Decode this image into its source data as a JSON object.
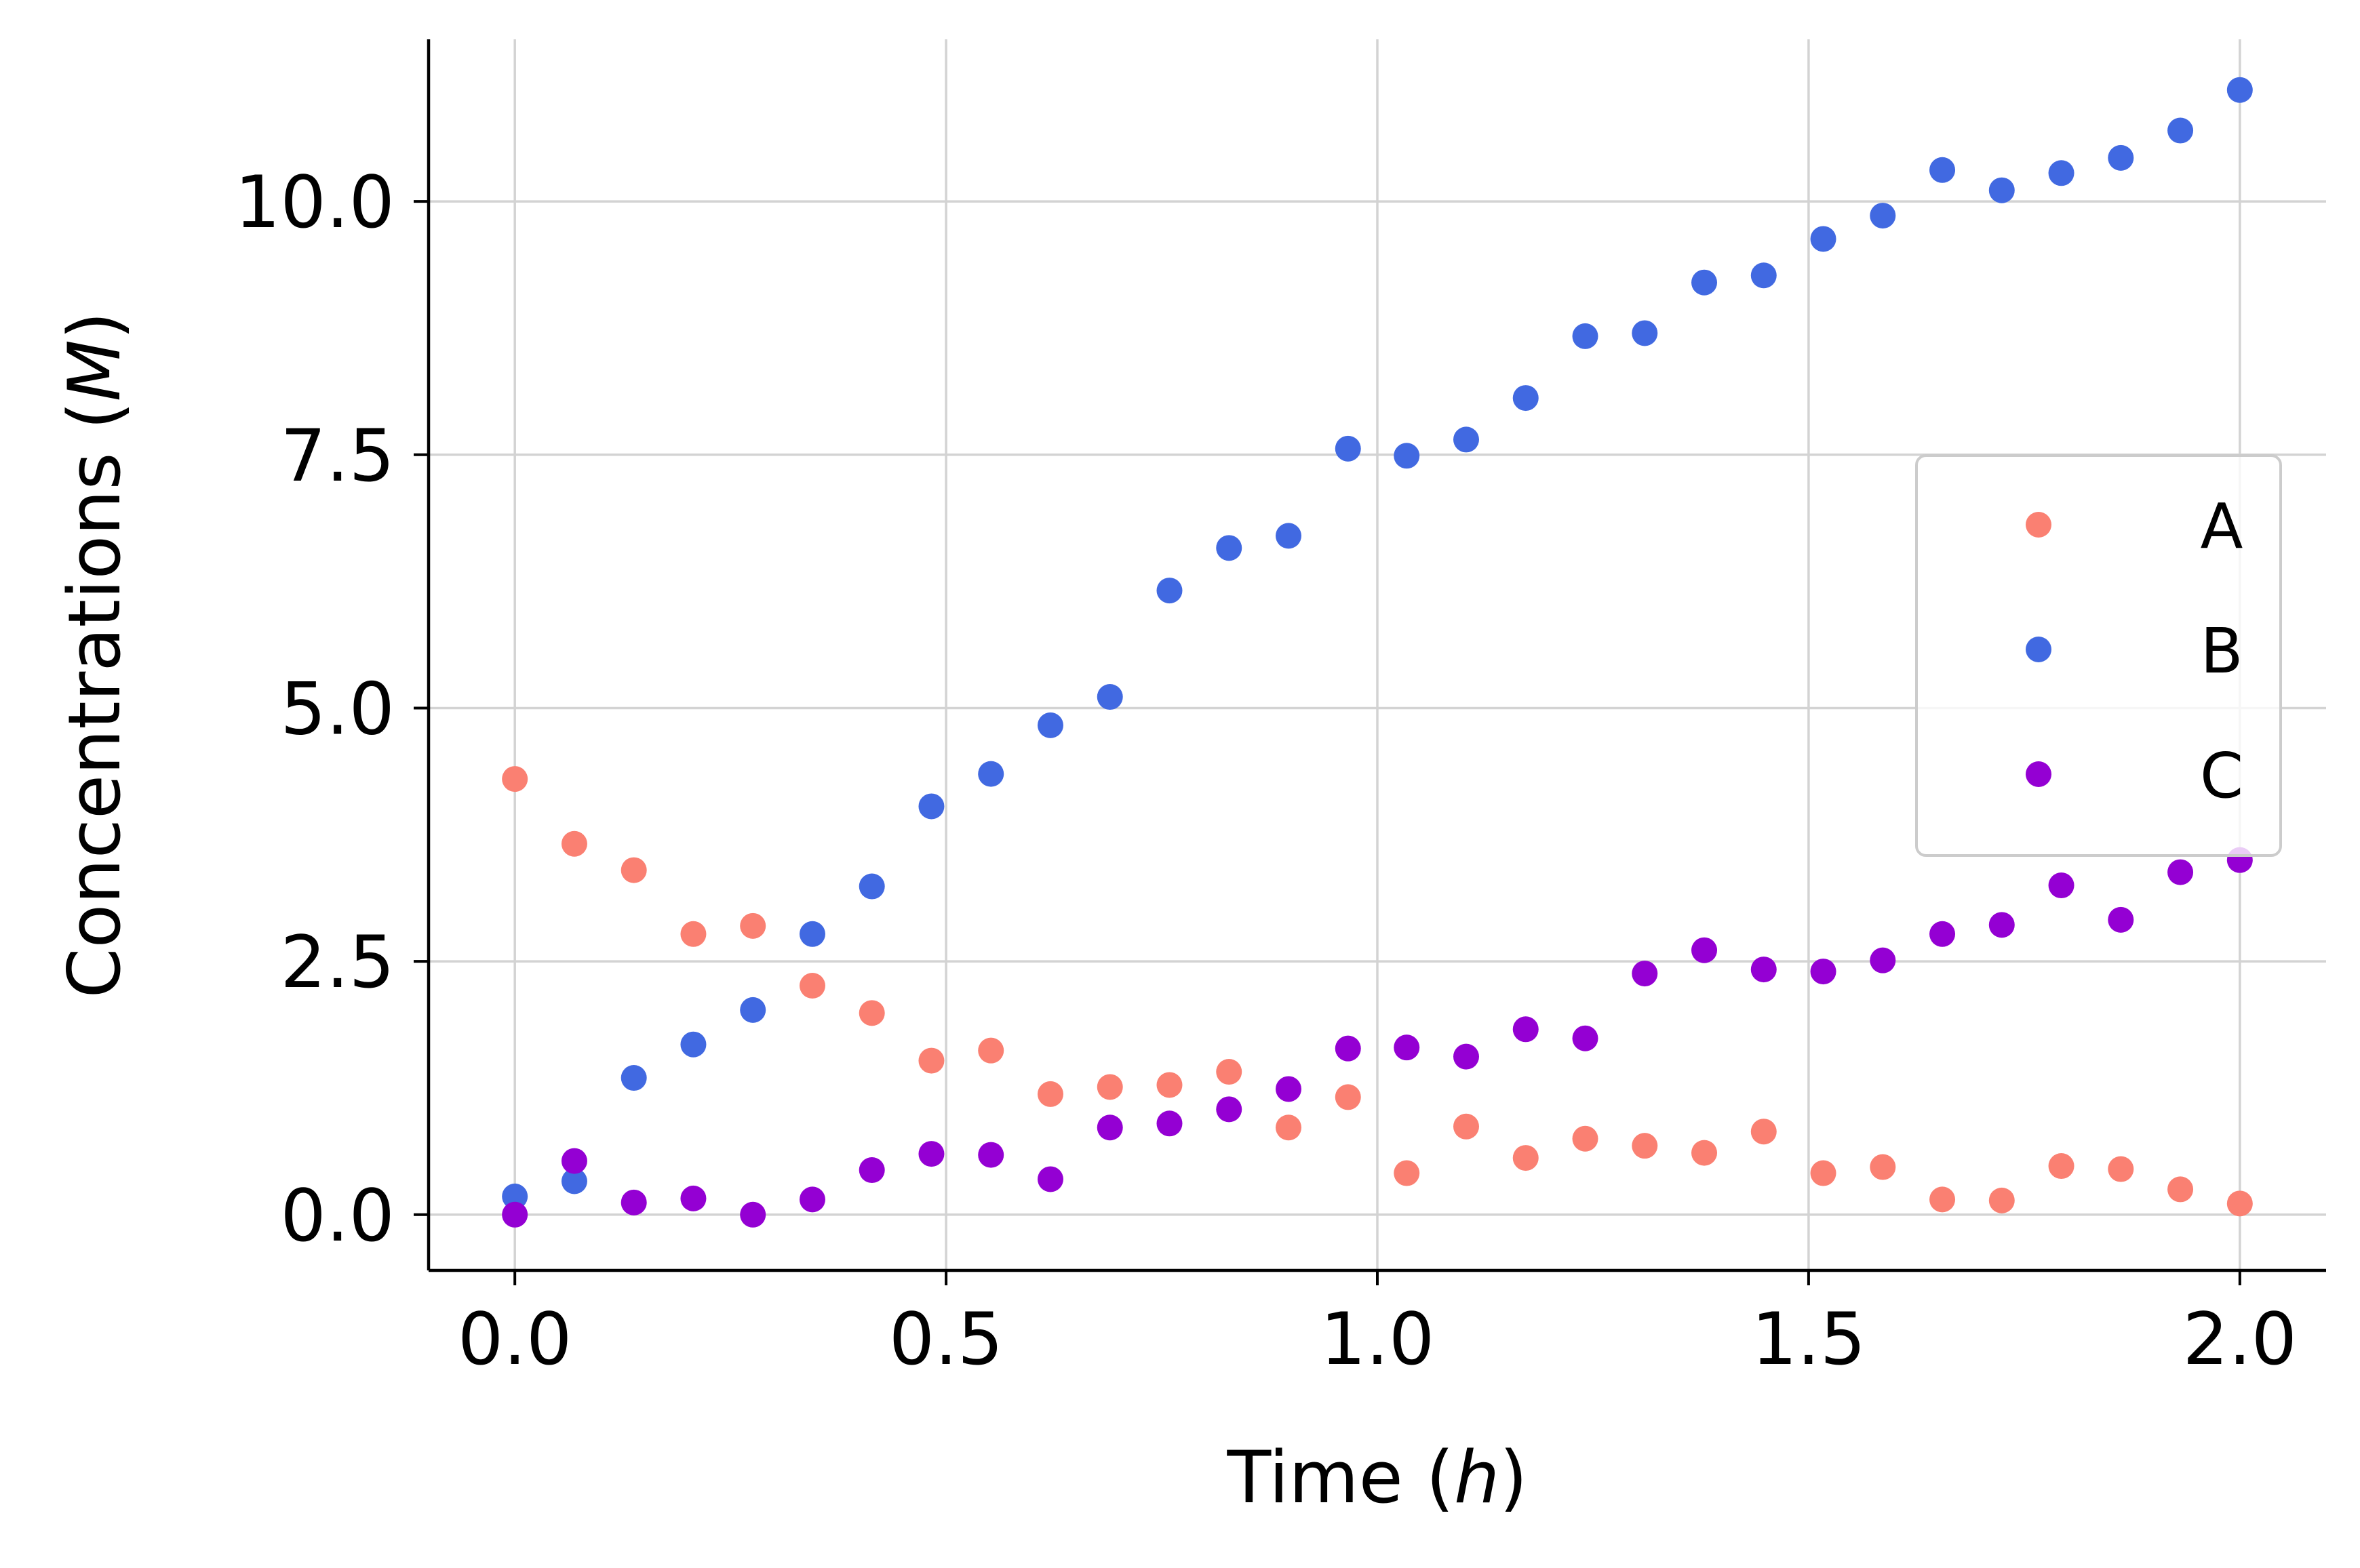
{
  "chart_data": {
    "type": "scatter",
    "title": "",
    "xlabel": {
      "prefix": "Time (",
      "var": "h",
      "suffix": ")"
    },
    "ylabel": {
      "prefix": "Concentrations (",
      "var": "M",
      "suffix": ")"
    },
    "xlim": [
      -0.1,
      2.1
    ],
    "ylim": [
      -0.55,
      11.6
    ],
    "xticks": [
      0.0,
      0.5,
      1.0,
      1.5,
      2.0
    ],
    "xtick_labels": [
      "0.0",
      "0.5",
      "1.0",
      "1.5",
      "2.0"
    ],
    "yticks": [
      0.0,
      2.5,
      5.0,
      7.5,
      10.0
    ],
    "ytick_labels": [
      "0.0",
      "2.5",
      "5.0",
      "7.5",
      "10.0"
    ],
    "grid": true,
    "legend_position": "center-right",
    "x": [
      0.0,
      0.069,
      0.138,
      0.207,
      0.276,
      0.345,
      0.414,
      0.483,
      0.552,
      0.621,
      0.69,
      0.759,
      0.828,
      0.897,
      0.966,
      1.034,
      1.103,
      1.172,
      1.241,
      1.31,
      1.379,
      1.448,
      1.517,
      1.586,
      1.655,
      1.724,
      1.793,
      1.862,
      1.931,
      2.0
    ],
    "series": [
      {
        "name": "A",
        "color": "#FA8072",
        "values": [
          4.3,
          3.66,
          3.4,
          2.77,
          2.85,
          2.26,
          1.99,
          1.52,
          1.62,
          1.19,
          1.26,
          1.28,
          1.41,
          0.86,
          1.16,
          0.41,
          0.87,
          0.56,
          0.75,
          0.68,
          0.61,
          0.82,
          0.41,
          0.47,
          0.15,
          0.14,
          0.48,
          0.45,
          0.25,
          0.11
        ]
      },
      {
        "name": "B",
        "color": "#4169E1",
        "values": [
          0.18,
          0.33,
          1.35,
          1.68,
          2.02,
          2.77,
          3.24,
          4.03,
          4.35,
          4.83,
          5.11,
          6.16,
          6.58,
          6.7,
          7.56,
          7.49,
          7.65,
          8.06,
          8.67,
          8.7,
          9.2,
          9.27,
          9.63,
          9.86,
          10.31,
          10.11,
          10.28,
          10.43,
          10.7,
          11.1
        ]
      },
      {
        "name": "C",
        "color": "#9400D3",
        "values": [
          0.0,
          0.53,
          0.12,
          0.16,
          0.0,
          0.15,
          0.44,
          0.6,
          0.59,
          0.35,
          0.86,
          0.9,
          1.04,
          1.24,
          1.64,
          1.65,
          1.56,
          1.83,
          1.74,
          2.38,
          2.61,
          2.42,
          2.4,
          2.51,
          2.77,
          2.86,
          3.25,
          2.91,
          3.38,
          3.5
        ]
      }
    ]
  }
}
